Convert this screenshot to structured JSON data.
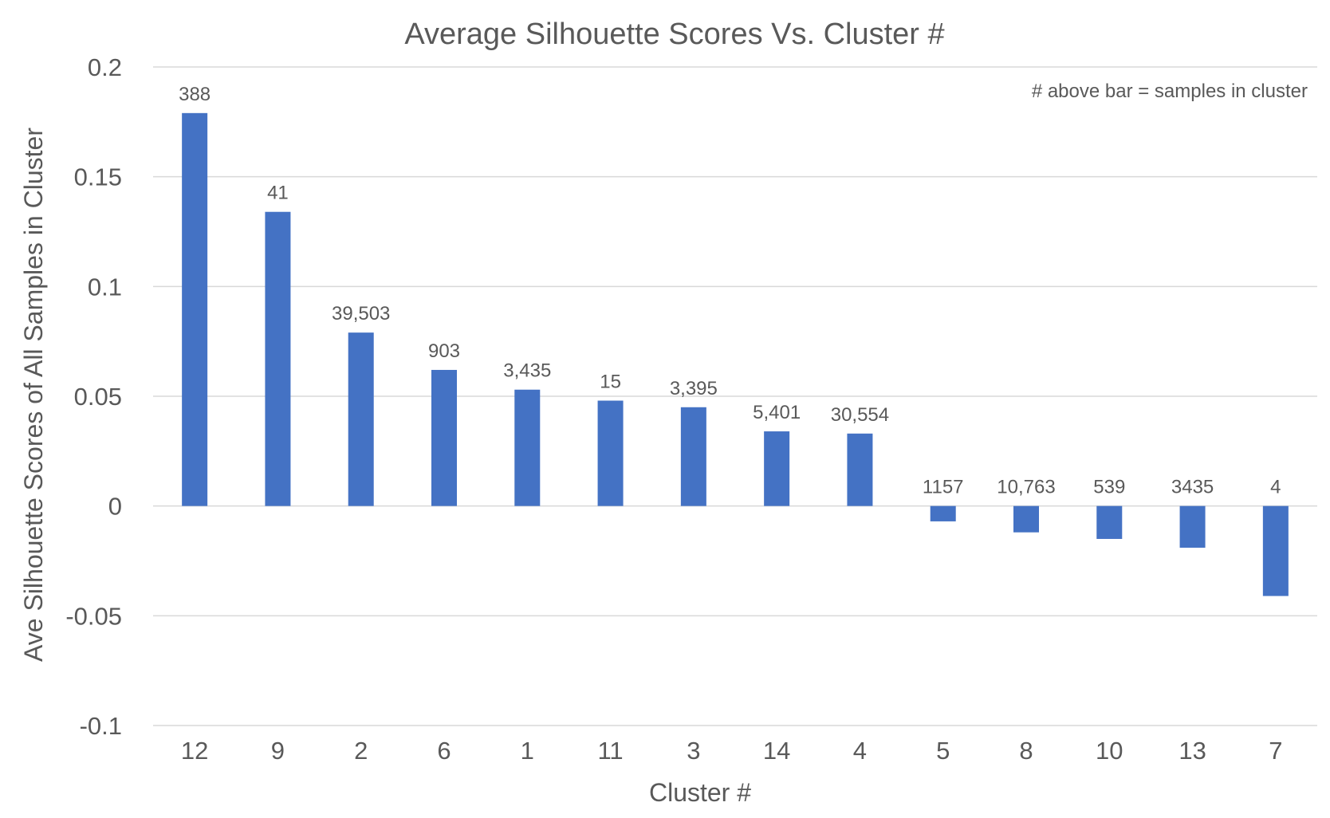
{
  "chart_data": {
    "type": "bar",
    "title": "Average Silhouette Scores Vs. Cluster #",
    "xlabel": "Cluster #",
    "ylabel": "Ave Silhouette Scores of All Samples in Cluster",
    "annotation": "# above bar = samples in cluster",
    "categories": [
      "12",
      "9",
      "2",
      "6",
      "1",
      "11",
      "3",
      "14",
      "4",
      "5",
      "8",
      "10",
      "13",
      "7"
    ],
    "values": [
      0.179,
      0.134,
      0.079,
      0.062,
      0.053,
      0.048,
      0.045,
      0.034,
      0.033,
      -0.007,
      -0.012,
      -0.015,
      -0.019,
      -0.041
    ],
    "data_labels": [
      "388",
      "41",
      "39,503",
      "903",
      "3,435",
      "15",
      "3,395",
      "5,401",
      "30,554",
      "1157",
      "10,763",
      "539",
      "3435",
      "4"
    ],
    "ylim": [
      -0.1,
      0.2
    ],
    "yticks": [
      0.2,
      0.15,
      0.1,
      0.05,
      0,
      -0.05,
      -0.1
    ],
    "ytick_labels": [
      "0.2",
      "0.15",
      "0.1",
      "0.05",
      "0",
      "-0.05",
      "-0.1"
    ],
    "grid": true,
    "legend": "none",
    "colors": {
      "bar": "#4472c4",
      "text": "#595959",
      "grid": "#d9d9d9"
    }
  }
}
